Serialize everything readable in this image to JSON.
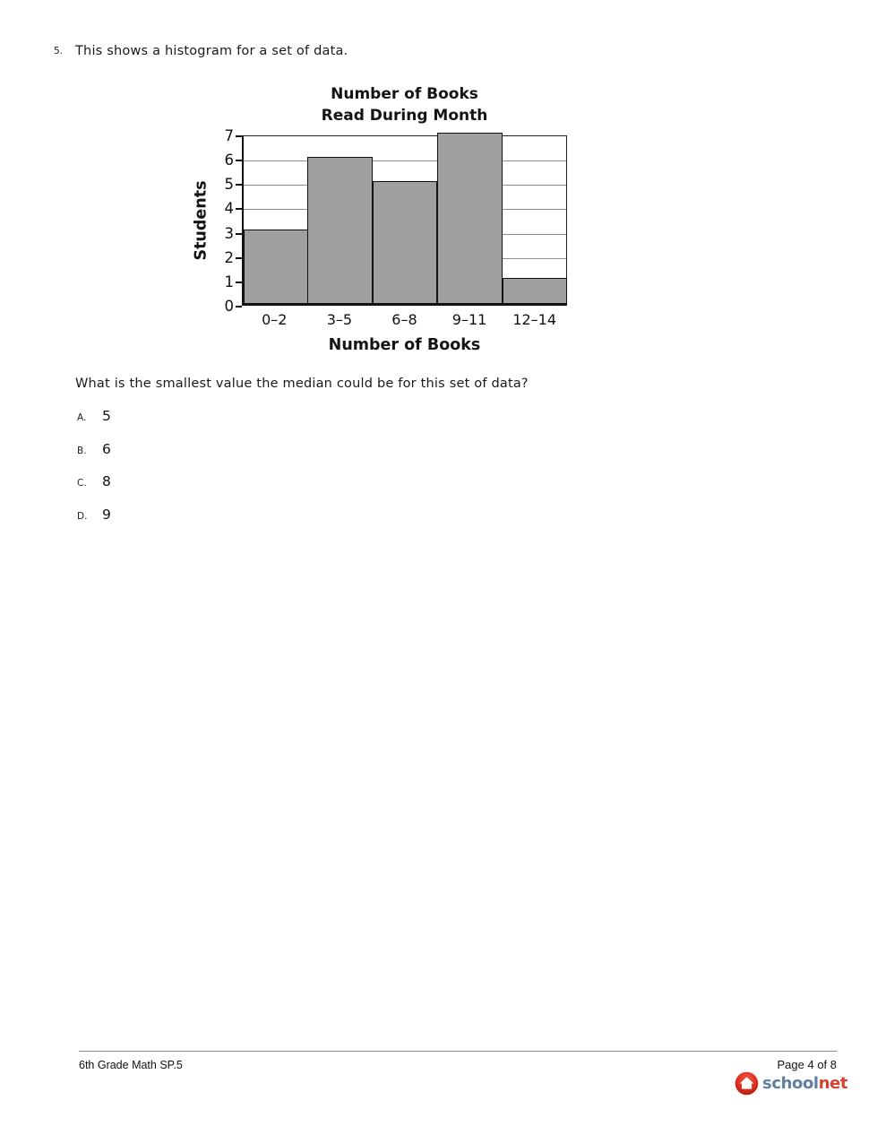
{
  "question": {
    "number": "5.",
    "intro": "This shows a histogram for a set of data.",
    "prompt": "What is the smallest value the median could be for this set of data?"
  },
  "chart_data": {
    "type": "bar",
    "title_lines": [
      "Number of Books",
      "Read During Month"
    ],
    "categories": [
      "0–2",
      "3–5",
      "6–8",
      "9–11",
      "12–14"
    ],
    "values": [
      3,
      6,
      5,
      7,
      1
    ],
    "xlabel": "Number of Books",
    "ylabel": "Students",
    "ylim": [
      0,
      7
    ],
    "yticks": [
      0,
      1,
      2,
      3,
      4,
      5,
      6,
      7
    ],
    "grid": "horizontal gridlines at each integer",
    "legend": "none",
    "bar_fill": "#9f9f9f",
    "bar_border": "#111111",
    "grid_color": "#8d8d8d"
  },
  "options": [
    {
      "label": "A.",
      "value": "5"
    },
    {
      "label": "B.",
      "value": "6"
    },
    {
      "label": "C.",
      "value": "8"
    },
    {
      "label": "D.",
      "value": "9"
    }
  ],
  "footer": {
    "course": "6th Grade Math SP.5",
    "page": "Page 4 of 8",
    "logo": {
      "school_text": "school",
      "net_text": "net",
      "school_color": "#61809f",
      "net_color": "#d8402f",
      "badge_color": "#d62b1f"
    }
  }
}
